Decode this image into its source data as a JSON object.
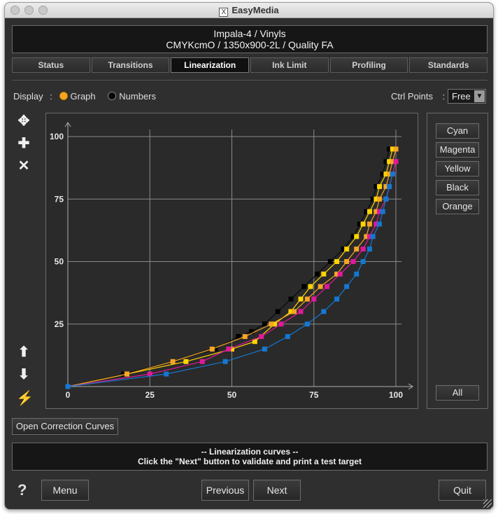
{
  "window": {
    "title": "EasyMedia",
    "logo_glyph": "X"
  },
  "header": {
    "line1": "Impala-4 / Vinyls",
    "line2": "CMYKcmO / 1350x900-2L / Quality FA"
  },
  "tabs": [
    {
      "label": "Status",
      "active": false
    },
    {
      "label": "Transitions",
      "active": false
    },
    {
      "label": "Linearization",
      "active": true
    },
    {
      "label": "Ink Limit",
      "active": false
    },
    {
      "label": "Profiling",
      "active": false
    },
    {
      "label": "Standards",
      "active": false
    }
  ],
  "display": {
    "label": "Display",
    "colon": ":",
    "options": [
      {
        "label": "Graph",
        "selected": true,
        "color": "#f5a623"
      },
      {
        "label": "Numbers",
        "selected": false,
        "color": "#000000"
      }
    ]
  },
  "ctrl_points": {
    "label": "Ctrl Points",
    "colon": ":",
    "value": "Free"
  },
  "tools": [
    {
      "icon": "expand-arrows-icon",
      "glyph": "✥"
    },
    {
      "icon": "add-point-icon",
      "glyph": "✚"
    },
    {
      "icon": "delete-point-icon",
      "glyph": "✕"
    },
    {
      "icon": "arrow-up-icon",
      "glyph": "⬆"
    },
    {
      "icon": "arrow-down-icon",
      "glyph": "⬇"
    },
    {
      "icon": "magic-wand-icon",
      "glyph": "⚡"
    }
  ],
  "channels": [
    "Cyan",
    "Magenta",
    "Yellow",
    "Black",
    "Orange"
  ],
  "all_button": "All",
  "open_correction_button": "Open Correction Curves",
  "status": {
    "line1": "-- Linearization curves --",
    "line2": "Click the \"Next\" button to validate and print a test target"
  },
  "help_glyph": "?",
  "buttons": {
    "menu": "Menu",
    "previous": "Previous",
    "next": "Next",
    "quit": "Quit"
  },
  "chart_data": {
    "type": "line",
    "xlim": [
      0,
      100
    ],
    "ylim": [
      0,
      100
    ],
    "x_ticks": [
      "0",
      "25",
      "50",
      "75",
      "100"
    ],
    "y_ticks": [
      "25",
      "50",
      "75",
      "100"
    ],
    "grid": true,
    "series": [
      {
        "color": "#0a0a0a",
        "marker": "#000000",
        "points": [
          [
            0,
            0
          ],
          [
            17,
            5
          ],
          [
            32,
            10
          ],
          [
            45,
            15
          ],
          [
            52,
            20
          ],
          [
            56,
            22
          ],
          [
            60,
            25
          ],
          [
            64,
            30
          ],
          [
            68,
            35
          ],
          [
            72,
            40
          ],
          [
            76,
            45
          ],
          [
            80,
            50
          ],
          [
            84,
            55
          ],
          [
            87,
            60
          ],
          [
            89,
            65
          ],
          [
            91,
            70
          ],
          [
            93,
            75
          ],
          [
            94,
            80
          ],
          [
            96,
            85
          ],
          [
            97,
            90
          ],
          [
            98,
            95
          ]
        ]
      },
      {
        "color": "#ffd400",
        "marker": "#ffd400",
        "points": [
          [
            0,
            0
          ],
          [
            18,
            5
          ],
          [
            36,
            10
          ],
          [
            50,
            15
          ],
          [
            57,
            18
          ],
          [
            63,
            25
          ],
          [
            68,
            30
          ],
          [
            71,
            35
          ],
          [
            74,
            40
          ],
          [
            78,
            45
          ],
          [
            82,
            50
          ],
          [
            85,
            55
          ],
          [
            88,
            60
          ],
          [
            90,
            65
          ],
          [
            92,
            70
          ],
          [
            94,
            75
          ],
          [
            95,
            80
          ],
          [
            97,
            85
          ],
          [
            98,
            90
          ],
          [
            99,
            95
          ]
        ]
      },
      {
        "color": "#f5a623",
        "marker": "#f5a623",
        "points": [
          [
            0,
            0
          ],
          [
            18,
            5
          ],
          [
            32,
            10
          ],
          [
            44,
            15
          ],
          [
            54,
            20
          ],
          [
            62,
            25
          ],
          [
            69,
            30
          ],
          [
            73,
            35
          ],
          [
            77,
            40
          ],
          [
            82,
            45
          ],
          [
            85,
            50
          ],
          [
            88,
            55
          ],
          [
            91,
            60
          ],
          [
            92,
            65
          ],
          [
            94,
            70
          ],
          [
            95,
            75
          ],
          [
            97,
            80
          ],
          [
            98,
            85
          ],
          [
            99,
            90
          ],
          [
            100,
            95
          ]
        ]
      },
      {
        "color": "#e0199b",
        "marker": "#e0199b",
        "points": [
          [
            0,
            0
          ],
          [
            25,
            5
          ],
          [
            41,
            10
          ],
          [
            49,
            15
          ],
          [
            59,
            20
          ],
          [
            65,
            25
          ],
          [
            71,
            30
          ],
          [
            75,
            35
          ],
          [
            79,
            40
          ],
          [
            83,
            45
          ],
          [
            87,
            50
          ],
          [
            90,
            55
          ],
          [
            92,
            60
          ],
          [
            94,
            65
          ],
          [
            95,
            70
          ],
          [
            97,
            75
          ],
          [
            98,
            80
          ],
          [
            99,
            85
          ],
          [
            100,
            90
          ]
        ]
      },
      {
        "color": "#1478d2",
        "marker": "#1478d2",
        "points": [
          [
            0,
            0
          ],
          [
            30,
            5
          ],
          [
            48,
            10
          ],
          [
            60,
            15
          ],
          [
            67,
            20
          ],
          [
            73,
            25
          ],
          [
            78,
            30
          ],
          [
            82,
            35
          ],
          [
            85,
            40
          ],
          [
            88,
            45
          ],
          [
            90,
            50
          ],
          [
            92,
            55
          ],
          [
            93,
            60
          ],
          [
            95,
            65
          ],
          [
            96,
            70
          ],
          [
            97,
            75
          ],
          [
            98,
            80
          ],
          [
            99,
            85
          ]
        ]
      }
    ]
  }
}
